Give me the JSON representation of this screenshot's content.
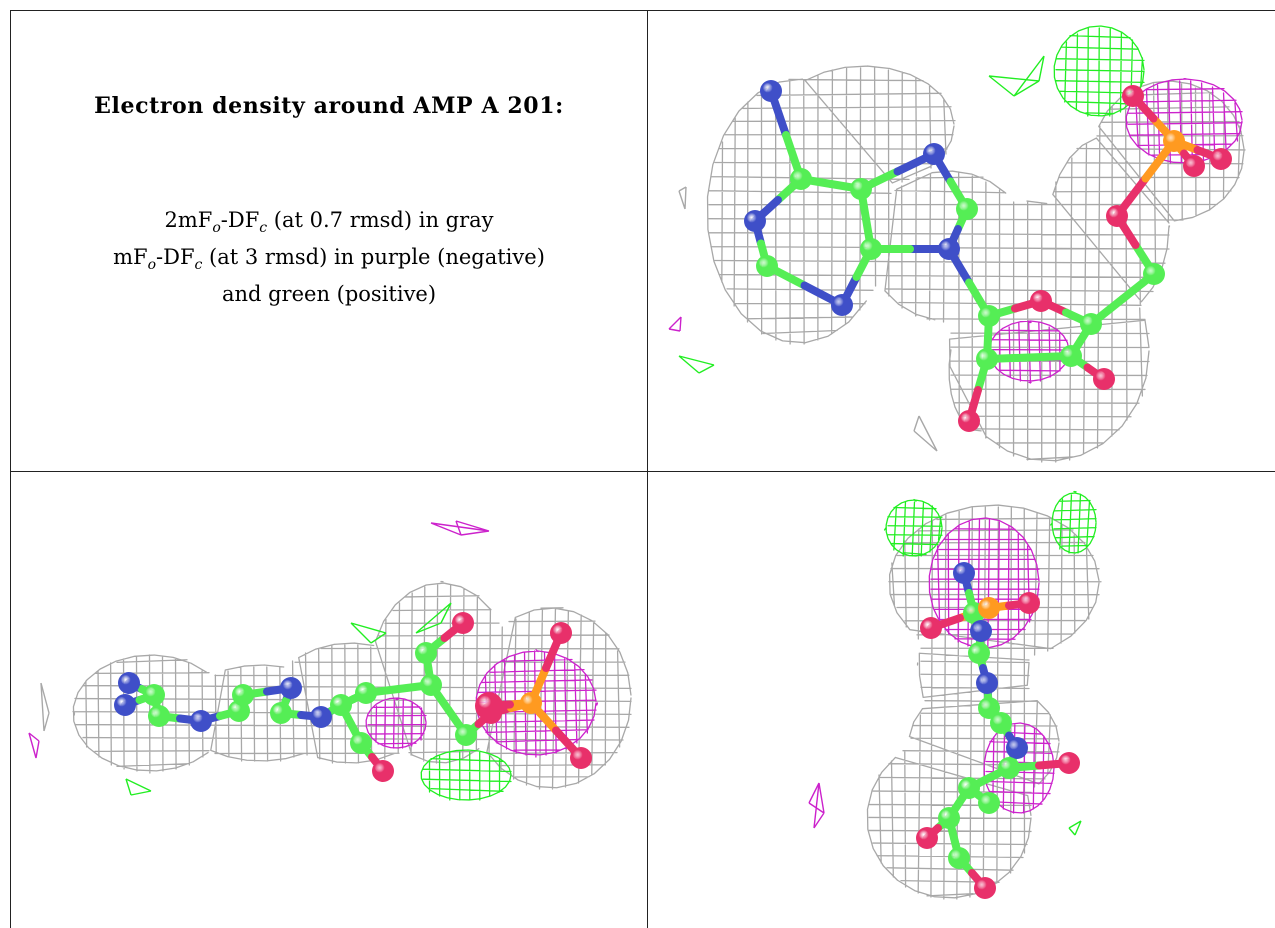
{
  "caption": {
    "title": "Electron density around AMP A 201:",
    "line1_pre": "2mF",
    "line1_sub1": "o",
    "line1_mid": "-DF",
    "line1_sub2": "c",
    "line1_post": " (at 0.7 rmsd) in gray",
    "line2_pre": "mF",
    "line2_sub1": "o",
    "line2_mid": "-DF",
    "line2_sub2": "c",
    "line2_post": " (at 3 rmsd) in purple (negative)",
    "line3": "and green (positive)"
  },
  "colors": {
    "density_2fofc": "#a8a8a8",
    "density_negative": "#cc22cc",
    "density_positive": "#22ee22",
    "carbon": "#55ee55",
    "nitrogen": "#3f4fc8",
    "oxygen": "#e8306a",
    "phosphorus": "#ff9a20",
    "border": "#222222"
  },
  "views": [
    {
      "name": "top-right",
      "orientation": "face-on"
    },
    {
      "name": "bottom-left",
      "orientation": "edge-on horizontal"
    },
    {
      "name": "bottom-right",
      "orientation": "edge-on vertical"
    }
  ]
}
